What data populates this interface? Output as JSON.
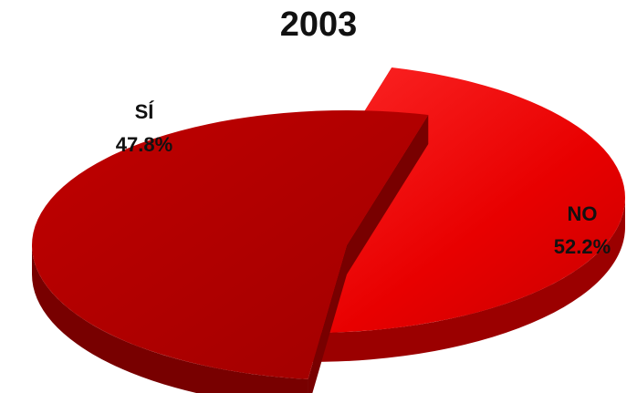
{
  "chart_data": {
    "type": "pie",
    "title": "2003",
    "style": "3d-exploded",
    "slices": [
      {
        "label": "SÍ",
        "value": 47.8,
        "value_label": "47.8%",
        "top_color": "#e60000",
        "side_color": "#9b0000"
      },
      {
        "label": "NO",
        "value": 52.2,
        "value_label": "52.2%",
        "top_color": "#b40000",
        "side_color": "#780000"
      }
    ]
  }
}
